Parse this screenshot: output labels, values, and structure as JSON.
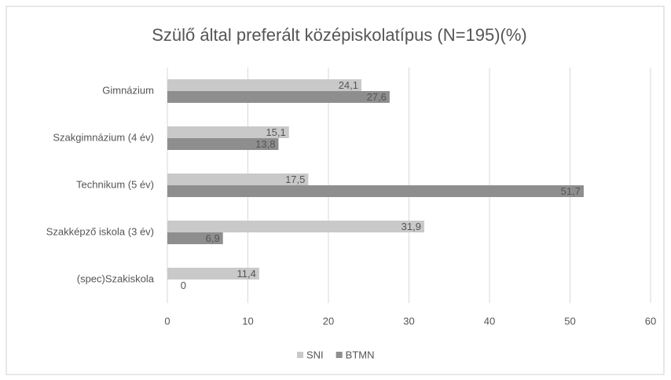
{
  "chart_data": {
    "type": "bar",
    "orientation": "horizontal",
    "title": "Szülő által preferált középiskolatípus (N=195)(%)",
    "categories": [
      "Gimnázium",
      "Szakgimnázium (4 év)",
      "Technikum (5 év)",
      "Szakképző iskola (3 év)",
      "(spec)Szakiskola"
    ],
    "series": [
      {
        "name": "SNI",
        "color": "#c9c9c9",
        "values": [
          24.1,
          15.1,
          17.5,
          31.9,
          11.4
        ],
        "value_labels": [
          "24,1",
          "15,1",
          "17,5",
          "31,9",
          "11,4"
        ]
      },
      {
        "name": "BTMN",
        "color": "#8e8e8e",
        "values": [
          27.6,
          13.8,
          51.7,
          6.9,
          0
        ],
        "value_labels": [
          "27,6",
          "13,8",
          "51,7",
          "6,9",
          "0"
        ]
      }
    ],
    "xlim": [
      0,
      60
    ],
    "xticks": [
      0,
      10,
      20,
      30,
      40,
      50,
      60
    ],
    "grid": true,
    "legend": "bottom"
  }
}
